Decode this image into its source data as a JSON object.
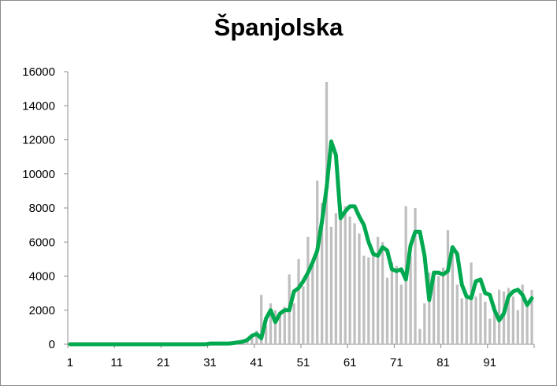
{
  "chart_data": {
    "type": "bar",
    "title": "Španjolska",
    "xlabel": "",
    "ylabel": "",
    "ylim": [
      0,
      16000
    ],
    "y_ticks": [
      0,
      2000,
      4000,
      6000,
      8000,
      10000,
      12000,
      14000,
      16000
    ],
    "y_tick_labels": [
      "0",
      "2000",
      "4000",
      "6000",
      "8000",
      "10000",
      "12000",
      "14000",
      "16000"
    ],
    "x_tick_labels": [
      "1",
      "11",
      "21",
      "31",
      "41",
      "51",
      "61",
      "71",
      "81",
      "91"
    ],
    "grid": false,
    "legend": "none",
    "x": [
      1,
      2,
      3,
      4,
      5,
      6,
      7,
      8,
      9,
      10,
      11,
      12,
      13,
      14,
      15,
      16,
      17,
      18,
      19,
      20,
      21,
      22,
      23,
      24,
      25,
      26,
      27,
      28,
      29,
      30,
      31,
      32,
      33,
      34,
      35,
      36,
      37,
      38,
      39,
      40,
      41,
      42,
      43,
      44,
      45,
      46,
      47,
      48,
      49,
      50,
      51,
      52,
      53,
      54,
      55,
      56,
      57,
      58,
      59,
      60,
      61,
      62,
      63,
      64,
      65,
      66,
      67,
      68,
      69,
      70,
      71,
      72,
      73,
      74,
      75,
      76,
      77,
      78,
      79,
      80,
      81,
      82,
      83,
      84,
      85,
      86,
      87,
      88,
      89,
      90,
      91,
      92,
      93,
      94,
      95,
      96,
      97,
      98,
      99,
      100
    ],
    "series": [
      {
        "kind": "bar",
        "color": "#bfbfbf",
        "values": [
          0,
          0,
          0,
          0,
          0,
          0,
          0,
          0,
          0,
          0,
          0,
          0,
          0,
          0,
          0,
          0,
          0,
          0,
          0,
          0,
          0,
          0,
          0,
          0,
          0,
          0,
          0,
          0,
          0,
          0,
          0,
          0,
          0,
          0,
          50,
          100,
          150,
          200,
          300,
          500,
          800,
          2900,
          1100,
          2400,
          2000,
          1700,
          2200,
          4100,
          2400,
          5000,
          3400,
          6300,
          4800,
          9600,
          8300,
          15400,
          6900,
          7700,
          8200,
          8100,
          7500,
          7100,
          6500,
          5200,
          5100,
          5300,
          6300,
          6000,
          3900,
          4800,
          4600,
          3500,
          8100,
          5200,
          8000,
          900,
          2400,
          4200,
          4100,
          4000,
          4500,
          6700,
          5500,
          3500,
          2700,
          2900,
          4800,
          2800,
          3000,
          2500,
          1500,
          2300,
          3200,
          3100,
          3300,
          2800,
          2000,
          3500,
          2500,
          3200
        ]
      },
      {
        "kind": "line",
        "color": "#00a94f",
        "values": [
          0,
          0,
          0,
          0,
          0,
          0,
          0,
          0,
          0,
          0,
          0,
          0,
          0,
          0,
          0,
          0,
          0,
          0,
          0,
          0,
          0,
          0,
          0,
          0,
          0,
          0,
          0,
          0,
          0,
          0,
          40,
          40,
          40,
          40,
          40,
          70,
          110,
          150,
          250,
          500,
          600,
          350,
          1500,
          2000,
          1300,
          1800,
          2000,
          2000,
          3100,
          3300,
          3700,
          4200,
          4800,
          5500,
          7200,
          9200,
          11900,
          11100,
          7400,
          7800,
          8100,
          8100,
          7500,
          7000,
          6000,
          5300,
          5200,
          5700,
          5500,
          4400,
          4300,
          4400,
          3800,
          5800,
          6600,
          6600,
          5200,
          2600,
          4200,
          4200,
          4100,
          4300,
          5700,
          5300,
          3500,
          2800,
          2700,
          3700,
          3800,
          3000,
          2900,
          2000,
          1400,
          1800,
          2800,
          3100,
          3200,
          2900,
          2300,
          2700
        ]
      }
    ]
  }
}
